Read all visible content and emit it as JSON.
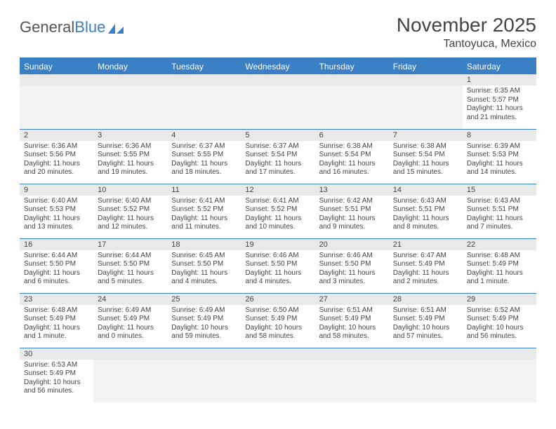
{
  "logo": {
    "text1": "General",
    "text2": "Blue"
  },
  "title": "November 2025",
  "location": "Tantoyuca, Mexico",
  "colors": {
    "header_bg": "#3b7fc4",
    "header_text": "#ffffff",
    "daynum_bg": "#e9e9e9",
    "text": "#444444",
    "row_border": "#3b7fc4",
    "page_bg": "#ffffff"
  },
  "weekdays": [
    "Sunday",
    "Monday",
    "Tuesday",
    "Wednesday",
    "Thursday",
    "Friday",
    "Saturday"
  ],
  "first_weekday_index": 6,
  "days": [
    {
      "n": 1,
      "sunrise": "6:35 AM",
      "sunset": "5:57 PM",
      "daylight": "11 hours and 21 minutes."
    },
    {
      "n": 2,
      "sunrise": "6:36 AM",
      "sunset": "5:56 PM",
      "daylight": "11 hours and 20 minutes."
    },
    {
      "n": 3,
      "sunrise": "6:36 AM",
      "sunset": "5:55 PM",
      "daylight": "11 hours and 19 minutes."
    },
    {
      "n": 4,
      "sunrise": "6:37 AM",
      "sunset": "5:55 PM",
      "daylight": "11 hours and 18 minutes."
    },
    {
      "n": 5,
      "sunrise": "6:37 AM",
      "sunset": "5:54 PM",
      "daylight": "11 hours and 17 minutes."
    },
    {
      "n": 6,
      "sunrise": "6:38 AM",
      "sunset": "5:54 PM",
      "daylight": "11 hours and 16 minutes."
    },
    {
      "n": 7,
      "sunrise": "6:38 AM",
      "sunset": "5:54 PM",
      "daylight": "11 hours and 15 minutes."
    },
    {
      "n": 8,
      "sunrise": "6:39 AM",
      "sunset": "5:53 PM",
      "daylight": "11 hours and 14 minutes."
    },
    {
      "n": 9,
      "sunrise": "6:40 AM",
      "sunset": "5:53 PM",
      "daylight": "11 hours and 13 minutes."
    },
    {
      "n": 10,
      "sunrise": "6:40 AM",
      "sunset": "5:52 PM",
      "daylight": "11 hours and 12 minutes."
    },
    {
      "n": 11,
      "sunrise": "6:41 AM",
      "sunset": "5:52 PM",
      "daylight": "11 hours and 11 minutes."
    },
    {
      "n": 12,
      "sunrise": "6:41 AM",
      "sunset": "5:52 PM",
      "daylight": "11 hours and 10 minutes."
    },
    {
      "n": 13,
      "sunrise": "6:42 AM",
      "sunset": "5:51 PM",
      "daylight": "11 hours and 9 minutes."
    },
    {
      "n": 14,
      "sunrise": "6:43 AM",
      "sunset": "5:51 PM",
      "daylight": "11 hours and 8 minutes."
    },
    {
      "n": 15,
      "sunrise": "6:43 AM",
      "sunset": "5:51 PM",
      "daylight": "11 hours and 7 minutes."
    },
    {
      "n": 16,
      "sunrise": "6:44 AM",
      "sunset": "5:50 PM",
      "daylight": "11 hours and 6 minutes."
    },
    {
      "n": 17,
      "sunrise": "6:44 AM",
      "sunset": "5:50 PM",
      "daylight": "11 hours and 5 minutes."
    },
    {
      "n": 18,
      "sunrise": "6:45 AM",
      "sunset": "5:50 PM",
      "daylight": "11 hours and 4 minutes."
    },
    {
      "n": 19,
      "sunrise": "6:46 AM",
      "sunset": "5:50 PM",
      "daylight": "11 hours and 4 minutes."
    },
    {
      "n": 20,
      "sunrise": "6:46 AM",
      "sunset": "5:50 PM",
      "daylight": "11 hours and 3 minutes."
    },
    {
      "n": 21,
      "sunrise": "6:47 AM",
      "sunset": "5:49 PM",
      "daylight": "11 hours and 2 minutes."
    },
    {
      "n": 22,
      "sunrise": "6:48 AM",
      "sunset": "5:49 PM",
      "daylight": "11 hours and 1 minute."
    },
    {
      "n": 23,
      "sunrise": "6:48 AM",
      "sunset": "5:49 PM",
      "daylight": "11 hours and 1 minute."
    },
    {
      "n": 24,
      "sunrise": "6:49 AM",
      "sunset": "5:49 PM",
      "daylight": "11 hours and 0 minutes."
    },
    {
      "n": 25,
      "sunrise": "6:49 AM",
      "sunset": "5:49 PM",
      "daylight": "10 hours and 59 minutes."
    },
    {
      "n": 26,
      "sunrise": "6:50 AM",
      "sunset": "5:49 PM",
      "daylight": "10 hours and 58 minutes."
    },
    {
      "n": 27,
      "sunrise": "6:51 AM",
      "sunset": "5:49 PM",
      "daylight": "10 hours and 58 minutes."
    },
    {
      "n": 28,
      "sunrise": "6:51 AM",
      "sunset": "5:49 PM",
      "daylight": "10 hours and 57 minutes."
    },
    {
      "n": 29,
      "sunrise": "6:52 AM",
      "sunset": "5:49 PM",
      "daylight": "10 hours and 56 minutes."
    },
    {
      "n": 30,
      "sunrise": "6:53 AM",
      "sunset": "5:49 PM",
      "daylight": "10 hours and 56 minutes."
    }
  ],
  "labels": {
    "sunrise": "Sunrise:",
    "sunset": "Sunset:",
    "daylight": "Daylight:"
  }
}
